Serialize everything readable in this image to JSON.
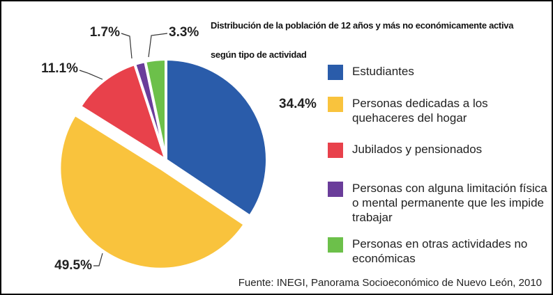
{
  "chart_data": {
    "type": "pie",
    "title": "Distribución de la población de 12 años y más no económicamente activa según tipo de actividad",
    "categories": [
      "Estudiantes",
      "Personas dedicadas a los quehaceres del hogar",
      "Jubilados y pensionados",
      "Personas con alguna limitación física o mental permanente que les impide trabajar",
      "Personas en otras actividades no económicas"
    ],
    "values": [
      34.4,
      49.5,
      11.1,
      1.7,
      3.3
    ],
    "value_labels": [
      "34.4%",
      "49.5%",
      "11.1%",
      "1.7%",
      "3.3%"
    ],
    "colors": [
      "#2a5caa",
      "#f9c33d",
      "#e8414b",
      "#6a3d9a",
      "#6cc04a"
    ],
    "source": "Fuente: INEGI, Panorama Socioeconómico de Nuevo León, 2010"
  }
}
